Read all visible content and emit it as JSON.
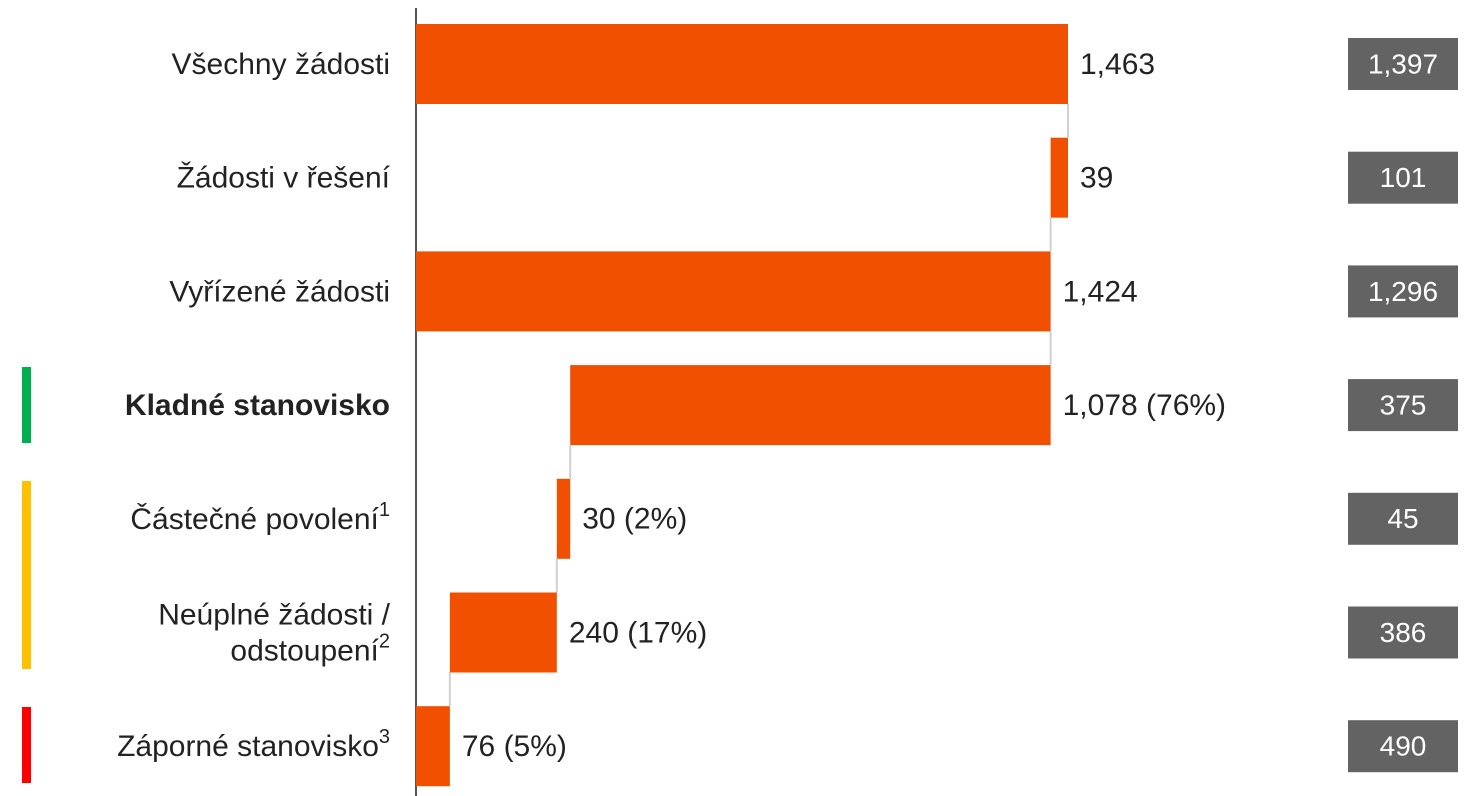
{
  "chart_data": {
    "type": "waterfall",
    "orientation": "horizontal",
    "categories": [
      [
        "Všechny žádosti"
      ],
      [
        "Žádosti v řešení"
      ],
      [
        "Vyřízené žádosti"
      ],
      [
        "Kladné stanovisko"
      ],
      [
        "Částečné povolení"
      ],
      [
        "Neúplné žádosti /",
        "odstoupení"
      ],
      [
        "Záporné stanovisko"
      ]
    ],
    "notes": [
      null,
      null,
      null,
      null,
      "1",
      "2",
      "3"
    ],
    "bold_category": 3,
    "measure": [
      "total",
      "decrease",
      "total",
      "decrease",
      "decrease",
      "decrease",
      "decrease"
    ],
    "values": [
      1463,
      39,
      1424,
      1078,
      30,
      240,
      76
    ],
    "value_labels": [
      "1,463",
      "39",
      "1,424",
      "1,078 (76%)",
      "30 (2%)",
      "240 (17%)",
      "76 (5%)"
    ],
    "color": "#f05000",
    "side_values": [
      1397,
      101,
      1296,
      375,
      45,
      386,
      490
    ],
    "side_value_labels": [
      "1,397",
      "101",
      "1,296",
      "375",
      "45",
      "386",
      "490"
    ],
    "side_color": "#636363",
    "xlim": [
      0,
      1463
    ]
  }
}
